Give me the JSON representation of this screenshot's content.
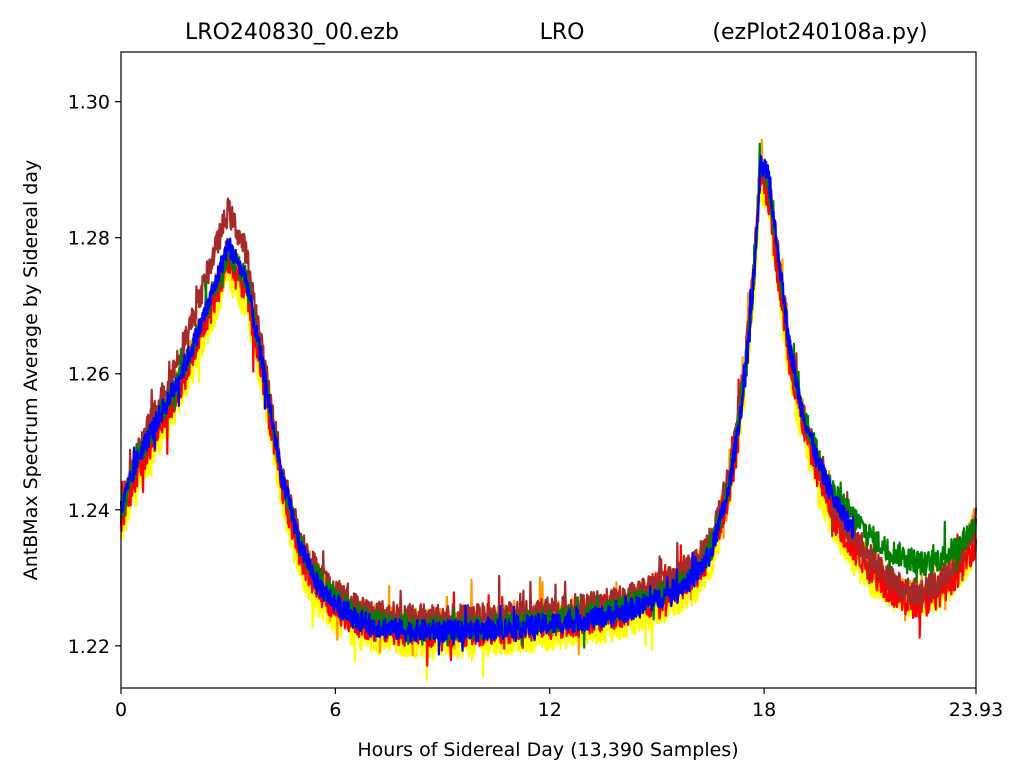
{
  "chart_data": {
    "type": "line",
    "title_left": "LRO240830_00.ezb",
    "title_center": "LRO",
    "title_right": "(ezPlot240108a.py)",
    "xlabel": "Hours of Sidereal Day  (13,390 Samples)",
    "ylabel": "AntBMax Spectrum Average by Sidereal day",
    "xlim": [
      0,
      23.93
    ],
    "ylim": [
      1.2138,
      1.3073
    ],
    "xticks": [
      {
        "value": 0,
        "label": "0"
      },
      {
        "value": 6,
        "label": "6"
      },
      {
        "value": 12,
        "label": "12"
      },
      {
        "value": 18,
        "label": "18"
      },
      {
        "value": 23.93,
        "label": "23.93"
      }
    ],
    "yticks": [
      {
        "value": 1.22,
        "label": "1.22"
      },
      {
        "value": 1.24,
        "label": "1.24"
      },
      {
        "value": 1.26,
        "label": "1.26"
      },
      {
        "value": 1.28,
        "label": "1.28"
      },
      {
        "value": 1.3,
        "label": "1.30"
      }
    ],
    "grid": false,
    "series": [
      {
        "color": "#ffff00",
        "offset": -0.0015,
        "noise": 0.0022,
        "x": [
          0,
          0.5,
          1,
          1.5,
          2,
          2.5,
          3,
          3.5,
          4,
          4.5,
          5,
          5.5,
          6,
          6.5,
          7,
          8,
          9,
          10,
          11,
          12,
          13,
          14,
          15,
          16,
          16.5,
          17,
          17.4,
          17.7,
          17.9,
          18.1,
          18.4,
          18.7,
          19,
          19.5,
          20,
          20.5,
          21,
          21.5,
          22,
          22.5,
          23,
          23.5,
          23.93
        ],
        "y": [
          1.238,
          1.246,
          1.251,
          1.256,
          1.262,
          1.269,
          1.276,
          1.272,
          1.258,
          1.243,
          1.233,
          1.228,
          1.2255,
          1.2235,
          1.2225,
          1.222,
          1.222,
          1.222,
          1.2225,
          1.223,
          1.2235,
          1.2245,
          1.2265,
          1.2295,
          1.233,
          1.242,
          1.256,
          1.272,
          1.289,
          1.286,
          1.274,
          1.262,
          1.254,
          1.245,
          1.238,
          1.234,
          1.231,
          1.229,
          1.228,
          1.228,
          1.229,
          1.232,
          1.236
        ]
      },
      {
        "color": "#ff9900",
        "offset": 0.0005,
        "noise": 0.0023,
        "x": [
          0,
          0.5,
          1,
          1.5,
          2,
          2.5,
          3,
          3.5,
          4,
          4.5,
          5,
          5.5,
          6,
          6.5,
          7,
          8,
          9,
          10,
          11,
          12,
          13,
          14,
          15,
          16,
          16.5,
          17,
          17.4,
          17.7,
          17.9,
          18.1,
          18.4,
          18.7,
          19,
          19.5,
          20,
          20.5,
          21,
          21.5,
          22,
          22.5,
          23,
          23.5,
          23.93
        ],
        "y": [
          1.239,
          1.247,
          1.252,
          1.257,
          1.263,
          1.27,
          1.277,
          1.273,
          1.259,
          1.244,
          1.234,
          1.229,
          1.2265,
          1.2245,
          1.2235,
          1.2228,
          1.2228,
          1.2228,
          1.2233,
          1.2238,
          1.2245,
          1.2255,
          1.2275,
          1.2305,
          1.234,
          1.243,
          1.257,
          1.273,
          1.291,
          1.288,
          1.276,
          1.263,
          1.255,
          1.246,
          1.239,
          1.235,
          1.232,
          1.229,
          1.227,
          1.227,
          1.229,
          1.233,
          1.238
        ]
      },
      {
        "color": "#ff0000",
        "offset": -0.0005,
        "noise": 0.0024,
        "x": [
          0,
          0.5,
          1,
          1.5,
          2,
          2.5,
          3,
          3.5,
          4,
          4.5,
          5,
          5.5,
          6,
          6.5,
          7,
          8,
          9,
          10,
          11,
          12,
          13,
          14,
          15,
          16,
          16.5,
          17,
          17.4,
          17.7,
          17.9,
          18.1,
          18.4,
          18.7,
          19,
          19.5,
          20,
          20.5,
          21,
          21.5,
          22,
          22.5,
          23,
          23.5,
          23.93
        ],
        "y": [
          1.239,
          1.247,
          1.252,
          1.257,
          1.263,
          1.27,
          1.277,
          1.273,
          1.259,
          1.244,
          1.234,
          1.229,
          1.2265,
          1.2245,
          1.2235,
          1.2228,
          1.2228,
          1.2228,
          1.2233,
          1.2238,
          1.2245,
          1.2255,
          1.2275,
          1.2305,
          1.234,
          1.243,
          1.257,
          1.273,
          1.29,
          1.287,
          1.275,
          1.263,
          1.255,
          1.246,
          1.239,
          1.235,
          1.232,
          1.229,
          1.227,
          1.227,
          1.229,
          1.232,
          1.236
        ]
      },
      {
        "color": "#a52a2a",
        "offset": 0.001,
        "noise": 0.002,
        "x": [
          0,
          0.5,
          1,
          1.5,
          2,
          2.5,
          3,
          3.5,
          4,
          4.5,
          5,
          5.5,
          6,
          6.5,
          7,
          8,
          9,
          10,
          11,
          12,
          13,
          14,
          15,
          16,
          16.5,
          17,
          17.4,
          17.7,
          17.9,
          18.1,
          18.4,
          18.7,
          19,
          19.5,
          20,
          20.5,
          21,
          21.5,
          22,
          22.5,
          23,
          23.5,
          23.93
        ],
        "y": [
          1.24,
          1.248,
          1.254,
          1.26,
          1.267,
          1.275,
          1.283,
          1.277,
          1.261,
          1.245,
          1.235,
          1.23,
          1.227,
          1.225,
          1.224,
          1.2232,
          1.2232,
          1.2232,
          1.2237,
          1.2242,
          1.2248,
          1.2258,
          1.2278,
          1.2308,
          1.2345,
          1.2435,
          1.2575,
          1.2735,
          1.29,
          1.288,
          1.276,
          1.264,
          1.255,
          1.246,
          1.239,
          1.235,
          1.232,
          1.229,
          1.227,
          1.227,
          1.229,
          1.232,
          1.237
        ]
      },
      {
        "color": "#008000",
        "offset": 0.0,
        "noise": 0.0018,
        "x": [
          0,
          0.5,
          1,
          1.5,
          2,
          2.5,
          3,
          3.5,
          4,
          4.5,
          5,
          5.5,
          6,
          6.5,
          7,
          8,
          9,
          10,
          11,
          12,
          13,
          14,
          15,
          16,
          16.5,
          17,
          17.4,
          17.7,
          17.9,
          18.1,
          18.4,
          18.7,
          19,
          19.5,
          20,
          20.5,
          21,
          21.5,
          22,
          22.5,
          23,
          23.5,
          23.93
        ],
        "y": [
          1.24,
          1.248,
          1.253,
          1.258,
          1.264,
          1.271,
          1.278,
          1.274,
          1.26,
          1.245,
          1.235,
          1.23,
          1.2268,
          1.2248,
          1.2236,
          1.2226,
          1.2226,
          1.2226,
          1.2231,
          1.2236,
          1.2243,
          1.2253,
          1.2273,
          1.2303,
          1.234,
          1.243,
          1.257,
          1.273,
          1.291,
          1.289,
          1.277,
          1.264,
          1.256,
          1.248,
          1.242,
          1.239,
          1.236,
          1.234,
          1.233,
          1.232,
          1.233,
          1.235,
          1.238
        ]
      },
      {
        "color": "#0000ff",
        "offset": 0.0,
        "noise": 0.0016,
        "x": [
          0,
          0.5,
          1,
          1.5,
          2,
          2.5,
          3,
          3.5,
          4,
          4.5,
          5,
          5.5,
          6,
          6.5,
          7,
          8,
          9,
          10,
          11,
          12,
          13,
          14,
          15,
          16,
          16.5,
          17,
          17.4,
          17.7,
          17.9,
          18.1,
          18.4,
          18.7,
          19,
          19.5,
          20,
          20.5
        ],
        "y": [
          1.24,
          1.248,
          1.253,
          1.258,
          1.264,
          1.271,
          1.279,
          1.274,
          1.26,
          1.245,
          1.235,
          1.229,
          1.2262,
          1.2242,
          1.223,
          1.2222,
          1.2222,
          1.2222,
          1.2227,
          1.2232,
          1.2238,
          1.2248,
          1.2268,
          1.2298,
          1.2335,
          1.2425,
          1.2565,
          1.2725,
          1.2905,
          1.2895,
          1.2775,
          1.2645,
          1.256,
          1.247,
          1.241,
          1.237
        ]
      }
    ]
  }
}
